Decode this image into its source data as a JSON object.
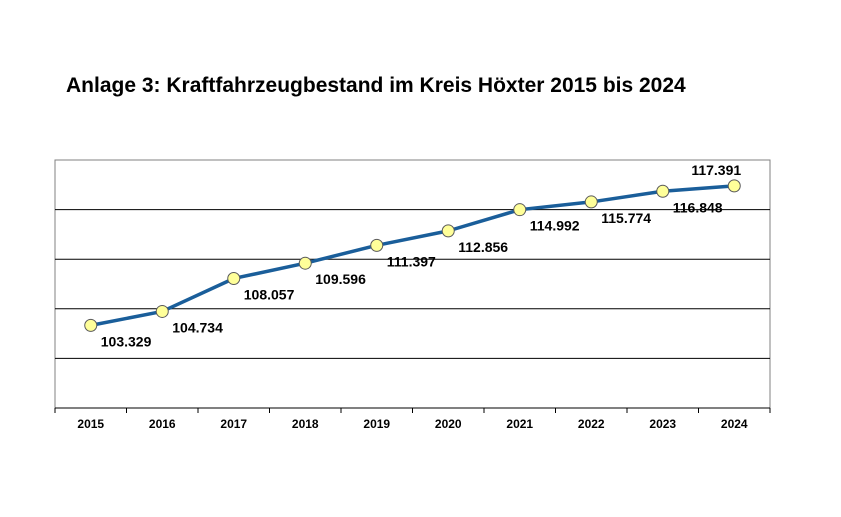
{
  "chart_data": {
    "type": "line",
    "title": "Anlage 3: Kraftfahrzeugbestand im Kreis Höxter 2015 bis 2024",
    "xlabel": "",
    "ylabel": "",
    "categories": [
      "2015",
      "2016",
      "2017",
      "2018",
      "2019",
      "2020",
      "2021",
      "2022",
      "2023",
      "2024"
    ],
    "series": [
      {
        "values": [
          103329,
          104734,
          108057,
          109596,
          111397,
          112856,
          114992,
          115774,
          116848,
          117391
        ],
        "labels": [
          "103.329",
          "104.734",
          "108.057",
          "109.596",
          "111.397",
          "112.856",
          "114.992",
          "115.774",
          "116.848",
          "117.391"
        ]
      }
    ],
    "ylim": [
      95000,
      120000
    ],
    "grid": true,
    "legend": "none",
    "colors": {
      "line": "#1a5e9a",
      "marker_fill": "#ffff99",
      "marker_stroke": "#5a5a5a",
      "grid": "#000000",
      "frame": "#808080"
    }
  }
}
